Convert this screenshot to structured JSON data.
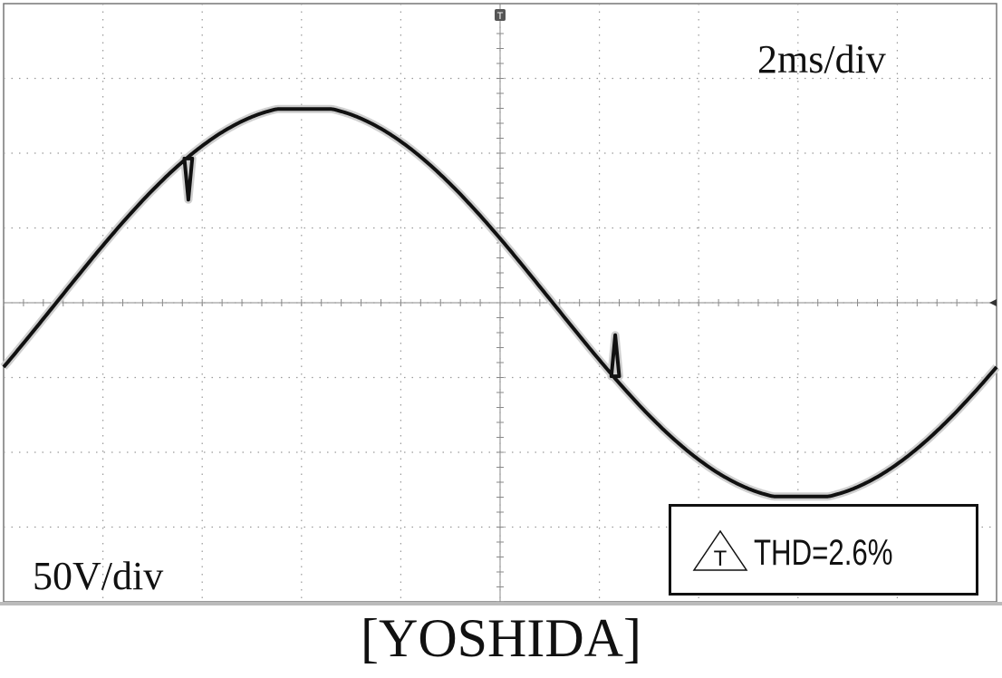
{
  "chart_data": {
    "type": "line",
    "title": "",
    "xlabel": "",
    "ylabel": "",
    "timebase_label": "2ms/div",
    "voltscale_label": "50V/div",
    "xlim_div": [
      -5,
      5
    ],
    "ylim_div": [
      -4,
      4
    ],
    "grid": true,
    "trigger_marker": "T",
    "series": [
      {
        "amplitude_div": 2.63,
        "notches": [
          {
            "x_div": -3.18,
            "y_div": 1.58,
            "depth_div": 0.55,
            "dir": -1
          },
          {
            "x_div": 1.12,
            "y_div": -1.58,
            "depth_div": 0.55,
            "dir": 1
          }
        ]
      }
    ]
  },
  "annotation": {
    "thd_text": "THD=2.6%",
    "thd_icon": "T"
  },
  "caption": "[YOSHIDA]",
  "colors": {
    "trace": "#111111",
    "grid": "#9a9a9a",
    "background": "#ffffff"
  }
}
